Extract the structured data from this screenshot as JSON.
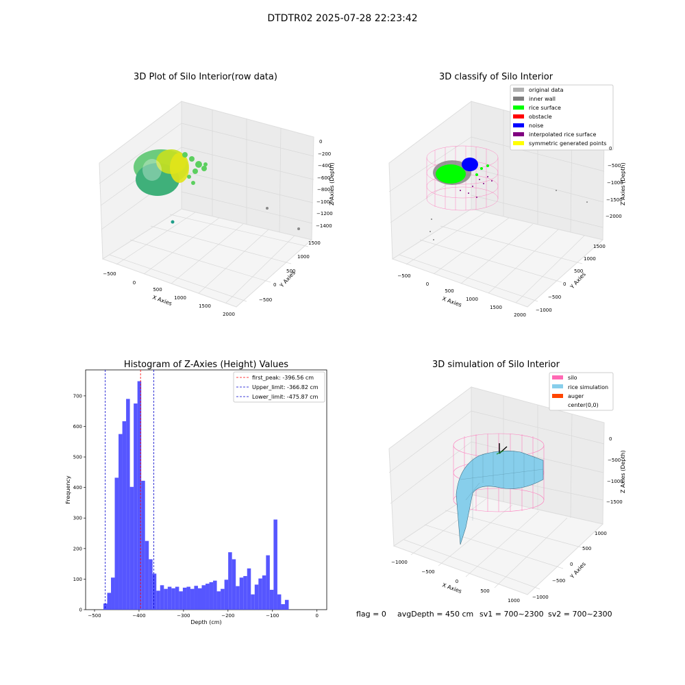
{
  "suptitle": "DTDTR02 2025-07-28 22:23:42",
  "colors": {
    "rice_surface": "#00ff00",
    "inner_wall": "#808080",
    "original_data": "#b0b0b0",
    "obstacle": "#ff0000",
    "noise": "#0000ff",
    "interpolated": "#800080",
    "symmetric": "#ffff00",
    "silo": "#ff69b4",
    "rice_sim": "#87ceeb",
    "auger": "#ff4500",
    "hist_bar": "#4d4dff",
    "first_peak": "#ff0000",
    "limits": "#0000cd"
  },
  "chart_data": [
    {
      "type": "scatter3d",
      "title": "3D Plot of Silo Interior(row data)",
      "xlabel": "X Axies",
      "ylabel": "Y Axies",
      "zlabel": "Z Axies (Depth)",
      "xticks": [
        "−500",
        "0",
        "500",
        "1000",
        "1500",
        "2000"
      ],
      "yticks": [
        "−500",
        "0",
        "500",
        "1000",
        "1500"
      ],
      "zticks": [
        "0",
        "−200",
        "−400",
        "−600",
        "−800",
        "−1000",
        "−1200",
        "−1400"
      ]
    },
    {
      "type": "scatter3d",
      "title": "3D classify of Silo Interior",
      "xlabel": "X Axies",
      "ylabel": "Y Axies",
      "zlabel": "Z Axies (Depth)",
      "xticks": [
        "−500",
        "0",
        "500",
        "1000",
        "1500",
        "2000"
      ],
      "yticks": [
        "−1000",
        "−500",
        "0",
        "500",
        "1000",
        "1500"
      ],
      "zticks": [
        "0",
        "−500",
        "−1000",
        "−1500",
        "−2000"
      ],
      "legend_position": "top-right",
      "legend": [
        {
          "label": "original data",
          "color": "#b0b0b0"
        },
        {
          "label": "inner wall",
          "color": "#808080"
        },
        {
          "label": "rice surface",
          "color": "#00ff00"
        },
        {
          "label": "obstacle",
          "color": "#ff0000"
        },
        {
          "label": "noise",
          "color": "#0000ff"
        },
        {
          "label": "interpolated rice surface",
          "color": "#800080"
        },
        {
          "label": "symmetric generated points",
          "color": "#ffff00"
        }
      ]
    },
    {
      "type": "bar",
      "title": "Histogram of Z-Axies (Height) Values",
      "xlabel": "Depth (cm)",
      "ylabel": "Frequency",
      "xlim": [
        -520,
        22
      ],
      "ylim": [
        0,
        785
      ],
      "bin_start": -480,
      "bin_width": 8.5,
      "values": [
        20,
        55,
        105,
        432,
        575,
        617,
        690,
        402,
        675,
        748,
        422,
        225,
        165,
        118,
        62,
        80,
        68,
        75,
        70,
        75,
        60,
        72,
        75,
        68,
        78,
        70,
        80,
        85,
        90,
        95,
        60,
        68,
        98,
        188,
        165,
        77,
        105,
        110,
        135,
        50,
        82,
        102,
        112,
        178,
        65,
        295,
        50,
        18,
        32
      ],
      "xticks": [
        -500,
        -400,
        -300,
        -200,
        -100,
        0
      ],
      "yticks": [
        0,
        100,
        200,
        300,
        400,
        500,
        600,
        700
      ],
      "vlines": [
        {
          "label": "first_peak: -396.56 cm",
          "x": -396.56,
          "color": "#ff0000"
        },
        {
          "label": "Upper_limit: -366.82 cm",
          "x": -366.82,
          "color": "#0000cd"
        },
        {
          "label": "Lower_limit: -475.87 cm",
          "x": -475.87,
          "color": "#0000cd"
        }
      ],
      "legend_position": "top-right"
    },
    {
      "type": "surface3d",
      "title": "3D simulation of Silo Interior",
      "xlabel": "X Axies",
      "ylabel": "Y Axies",
      "zlabel": "Z Axies (Depth)",
      "xticks": [
        "−1000",
        "−500",
        "0",
        "500",
        "1000"
      ],
      "yticks": [
        "−1000",
        "−500",
        "0",
        "500",
        "1000"
      ],
      "zticks": [
        "0",
        "−500",
        "−1000",
        "−1500"
      ],
      "legend_position": "top-right",
      "legend": [
        {
          "label": "silo",
          "color": "#ff69b4"
        },
        {
          "label": "rice simulation",
          "color": "#87ceeb"
        },
        {
          "label": "auger",
          "color": "#ff4500"
        },
        {
          "label": "center(0,0)",
          "color": ""
        }
      ]
    }
  ],
  "status_line": {
    "flag": "flag = 0",
    "avg": "avgDepth = 450 cm",
    "sv1": "sv1 = 700~2300",
    "sv2": "sv2 = 700~2300"
  }
}
